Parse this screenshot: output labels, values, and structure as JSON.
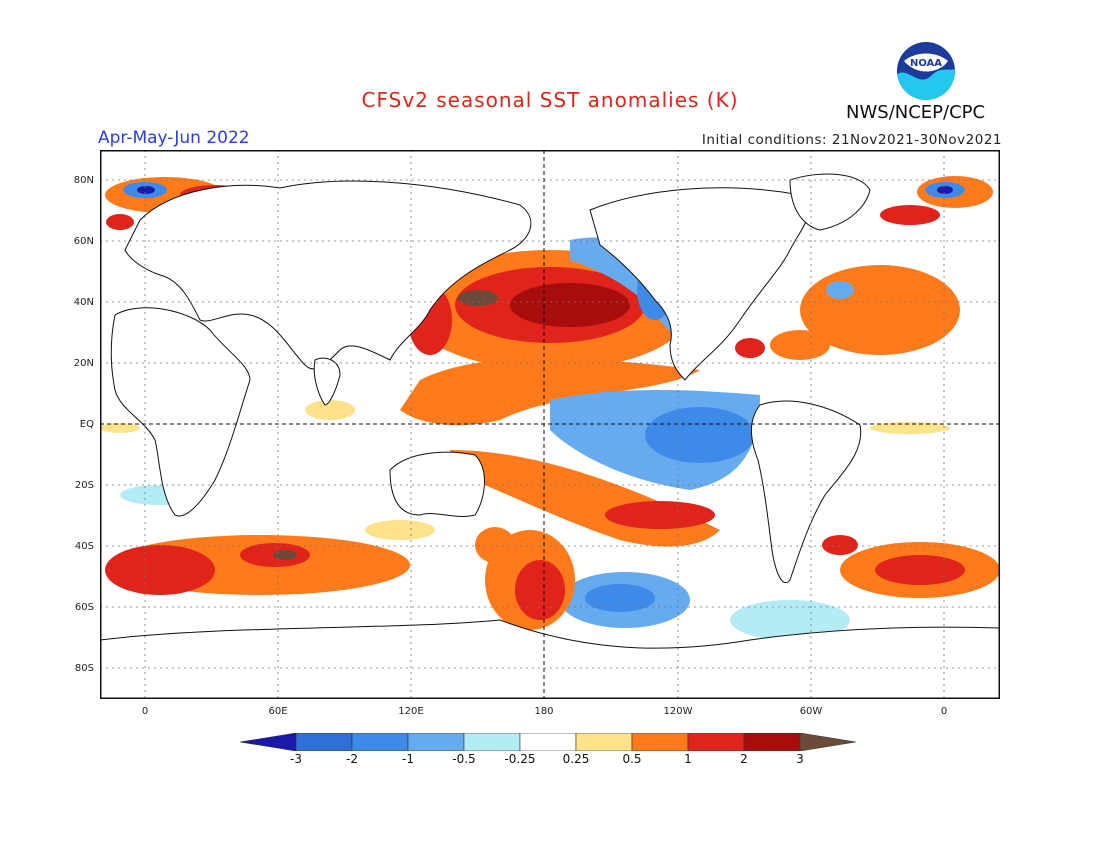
{
  "header": {
    "title": "CFSv2 seasonal SST anomalies (K)",
    "period": "Apr-May-Jun 2022",
    "initial_conditions": "Initial conditions: 21Nov2021-30Nov2021",
    "organization": "NWS/NCEP/CPC",
    "logo_text": "NOAA"
  },
  "map": {
    "lat_labels": [
      "80N",
      "60N",
      "40N",
      "20N",
      "EQ",
      "20S",
      "40S",
      "60S",
      "80S"
    ],
    "lon_labels": [
      "0",
      "60E",
      "120E",
      "180",
      "120W",
      "60W",
      "0"
    ]
  },
  "colorbar": {
    "tick_labels": [
      "-3",
      "-2",
      "-1",
      "-0.5",
      "-0.25",
      "0.25",
      "0.5",
      "1",
      "2",
      "3"
    ],
    "colors": [
      "#1a1aa8",
      "#2f6fd6",
      "#3d8ae8",
      "#66aaf0",
      "#b4ecf5",
      "#ffffff",
      "#ffe28a",
      "#ff7a1a",
      "#e0241b",
      "#a80d0d",
      "#6b4a3a"
    ]
  }
}
